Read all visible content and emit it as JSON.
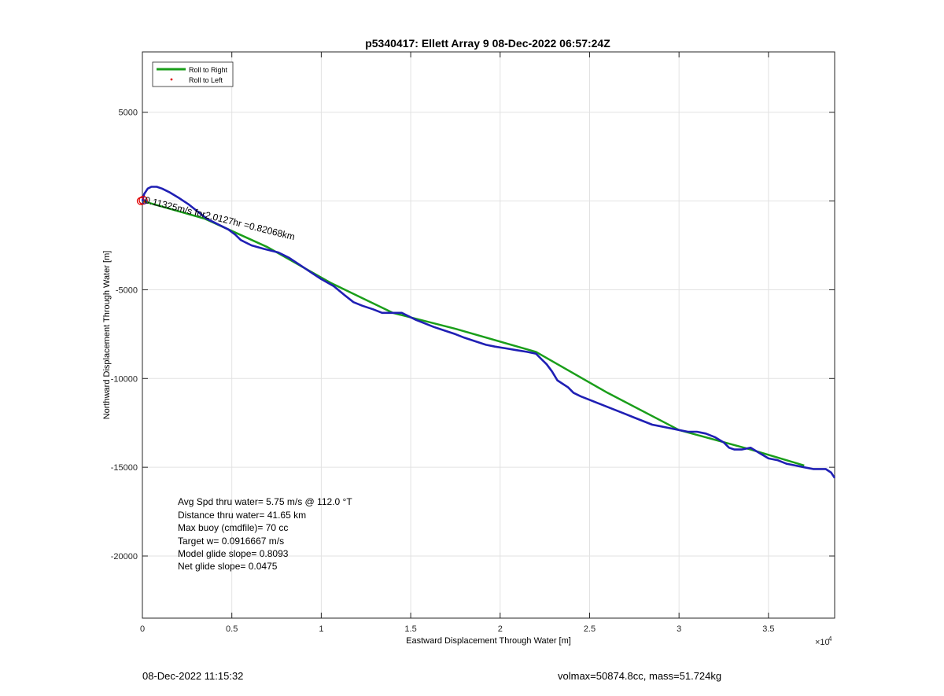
{
  "footer": {
    "timestamp": "08-Dec-2022 11:15:32",
    "volmax_mass": "volmax=50874.8cc, mass=51.724kg"
  },
  "chart_data": {
    "type": "line",
    "title": "p5340417: Ellett Array 9 08-Dec-2022 06:57:24Z",
    "xlabel": "Eastward Displacement Through Water [m]",
    "ylabel": "Northward Displacement Through Water [m]",
    "x_exponent_label": "×10",
    "x_exponent_power": "4",
    "xlim": [
      0,
      38700
    ],
    "ylim": [
      -23500,
      8400
    ],
    "grid": true,
    "x_ticks": [
      {
        "value": 0,
        "label": "0"
      },
      {
        "value": 5000,
        "label": "0.5"
      },
      {
        "value": 10000,
        "label": "1"
      },
      {
        "value": 15000,
        "label": "1.5"
      },
      {
        "value": 20000,
        "label": "2"
      },
      {
        "value": 25000,
        "label": "2.5"
      },
      {
        "value": 30000,
        "label": "3"
      },
      {
        "value": 35000,
        "label": "3.5"
      }
    ],
    "y_ticks": [
      {
        "value": 5000,
        "label": "5000"
      },
      {
        "value": 0,
        "label": ""
      },
      {
        "value": -5000,
        "label": "-5000"
      },
      {
        "value": -10000,
        "label": "-10000"
      },
      {
        "value": -15000,
        "label": "-15000"
      },
      {
        "value": -20000,
        "label": "-20000"
      }
    ],
    "legend": {
      "placement": "top-left",
      "entries": [
        {
          "label": "Roll to Right",
          "color": "#1a9e1a",
          "marker": "line"
        },
        {
          "label": "Roll to Left",
          "color": "#e00000",
          "marker": "dot"
        }
      ]
    },
    "series": [
      {
        "name": "Roll to Right",
        "color": "#1a9e1a",
        "x": [
          0,
          3500,
          7000,
          10500,
          14000,
          17500,
          22000,
          26000,
          30000,
          34000,
          37000
        ],
        "y": [
          0,
          -1000,
          -2600,
          -4600,
          -6300,
          -7200,
          -8500,
          -10800,
          -12900,
          -14000,
          -14900
        ]
      },
      {
        "name": "track",
        "color": "#1f1fb4",
        "x": [
          0,
          100,
          300,
          500,
          800,
          1100,
          1500,
          2000,
          2600,
          3100,
          3600,
          4200,
          4800,
          5200,
          5500,
          5700,
          6100,
          6800,
          7600,
          8200,
          8800,
          9400,
          10000,
          10700,
          11300,
          11800,
          12300,
          12900,
          13400,
          13900,
          14500,
          14900,
          15300,
          15800,
          16300,
          16900,
          17500,
          18000,
          18600,
          19200,
          19700,
          20300,
          20900,
          21500,
          22000,
          22300,
          22600,
          22900,
          23200,
          23500,
          23800,
          24100,
          24500,
          25000,
          25500,
          26000,
          26500,
          27000,
          27500,
          28000,
          28500,
          29000,
          29500,
          30000,
          30500,
          31000,
          31500,
          32000,
          32500,
          32800,
          33100,
          33500,
          34000,
          34500,
          35000,
          35500,
          36000,
          36500,
          37000,
          37500,
          37800,
          38200,
          38500,
          38700
        ],
        "y": [
          0,
          400,
          700,
          800,
          800,
          700,
          500,
          200,
          -200,
          -600,
          -1000,
          -1300,
          -1600,
          -1900,
          -2200,
          -2300,
          -2500,
          -2700,
          -2900,
          -3200,
          -3600,
          -4000,
          -4400,
          -4800,
          -5300,
          -5700,
          -5900,
          -6100,
          -6300,
          -6300,
          -6300,
          -6500,
          -6700,
          -6900,
          -7100,
          -7300,
          -7500,
          -7700,
          -7900,
          -8100,
          -8200,
          -8300,
          -8400,
          -8500,
          -8600,
          -8900,
          -9200,
          -9600,
          -10100,
          -10300,
          -10500,
          -10800,
          -11000,
          -11200,
          -11400,
          -11600,
          -11800,
          -12000,
          -12200,
          -12400,
          -12600,
          -12700,
          -12800,
          -12900,
          -13000,
          -13000,
          -13100,
          -13300,
          -13600,
          -13900,
          -14000,
          -14000,
          -13900,
          -14200,
          -14500,
          -14600,
          -14800,
          -14900,
          -15000,
          -15100,
          -15100,
          -15100,
          -15300,
          -15600
        ]
      }
    ],
    "annotations": [
      {
        "text": "0.11325m/s for2.0127hr =0.82068km",
        "x": 100,
        "y": -100,
        "angle": 14
      }
    ],
    "stats_lines": [
      "Avg Spd thru water=  5.75 m/s @ 112.0 °T",
      "Distance thru water= 41.65 km",
      "Max buoy (cmdfile)= 70 cc",
      "Target w= 0.0916667 m/s",
      "Model glide slope= 0.8093",
      "Net glide slope= 0.0475"
    ]
  }
}
